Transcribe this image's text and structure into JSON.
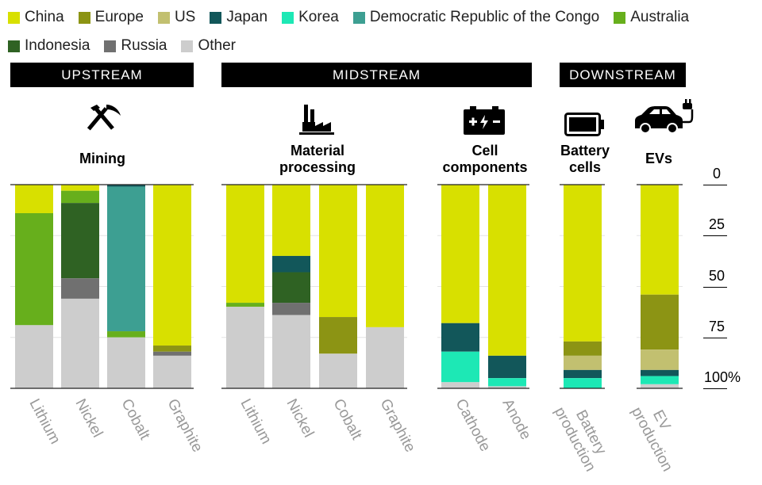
{
  "legend": [
    {
      "name": "China",
      "color": "#d8e000"
    },
    {
      "name": "Europe",
      "color": "#8c9414"
    },
    {
      "name": "US",
      "color": "#c2c070"
    },
    {
      "name": "Japan",
      "color": "#12575a"
    },
    {
      "name": "Korea",
      "color": "#1de8b5"
    },
    {
      "name": "Democratic Republic of the Congo",
      "color": "#3d9f92"
    },
    {
      "name": "Australia",
      "color": "#67af1c"
    },
    {
      "name": "Indonesia",
      "color": "#2f6223"
    },
    {
      "name": "Russia",
      "color": "#707070"
    },
    {
      "name": "Other",
      "color": "#cdcdcd"
    }
  ],
  "stages": {
    "upstream": "UPSTREAM",
    "midstream": "MIDSTREAM",
    "downstream": "DOWNSTREAM"
  },
  "groups": {
    "mining": "Mining",
    "material_processing": "Material processing",
    "cell_components": "Cell components",
    "battery_cells": "Battery cells",
    "evs": "EVs"
  },
  "icons": [
    "pickaxe-hammer-icon",
    "factory-icon",
    "battery-components-icon",
    "battery-icon",
    "ev-car-charging-icon"
  ],
  "axis": {
    "ticks": [
      "0",
      "25",
      "50",
      "75",
      "100%"
    ],
    "range": [
      0,
      100
    ],
    "direction": "top-to-bottom"
  },
  "chart_data": {
    "type": "bar",
    "stacked": true,
    "orientation": "vertical",
    "ylim": [
      0,
      100
    ],
    "categories": [
      "Lithium",
      "Nickel",
      "Cobalt",
      "Graphite",
      "Lithium",
      "Nickel",
      "Cobalt",
      "Graphite",
      "Cathode",
      "Anode",
      "Battery production",
      "EV production"
    ],
    "series": [
      {
        "name": "China",
        "values": [
          14,
          3,
          0,
          79,
          58,
          35,
          65,
          70,
          68,
          84,
          77,
          54
        ]
      },
      {
        "name": "Europe",
        "values": [
          0,
          0,
          0,
          3,
          0,
          0,
          18,
          0,
          0,
          0,
          7,
          27
        ]
      },
      {
        "name": "US",
        "values": [
          0,
          0,
          0,
          0,
          0,
          0,
          0,
          0,
          0,
          0,
          7,
          10
        ]
      },
      {
        "name": "Japan",
        "values": [
          0,
          0,
          1,
          0,
          0,
          8,
          0,
          0,
          14,
          11,
          4,
          3
        ]
      },
      {
        "name": "Korea",
        "values": [
          0,
          0,
          0,
          0,
          0,
          0,
          0,
          0,
          15,
          4,
          5,
          4
        ]
      },
      {
        "name": "Democratic Republic of the Congo",
        "values": [
          0,
          0,
          71,
          0,
          0,
          0,
          0,
          0,
          0,
          0,
          0,
          0
        ]
      },
      {
        "name": "Australia",
        "values": [
          55,
          6,
          3,
          0,
          2,
          0,
          0,
          0,
          0,
          0,
          0,
          0
        ]
      },
      {
        "name": "Indonesia",
        "values": [
          0,
          37,
          0,
          0,
          0,
          15,
          0,
          0,
          0,
          0,
          0,
          0
        ]
      },
      {
        "name": "Russia",
        "values": [
          0,
          10,
          0,
          2,
          0,
          6,
          0,
          0,
          0,
          0,
          0,
          0
        ]
      },
      {
        "name": "Other",
        "values": [
          31,
          44,
          25,
          16,
          40,
          36,
          17,
          30,
          3,
          1,
          0,
          2
        ]
      }
    ],
    "extra_colors": {
      "Yellow-low": "#d8e000",
      "Europe-alt": "#8c9414",
      "US-alt": "#c2c070"
    }
  }
}
